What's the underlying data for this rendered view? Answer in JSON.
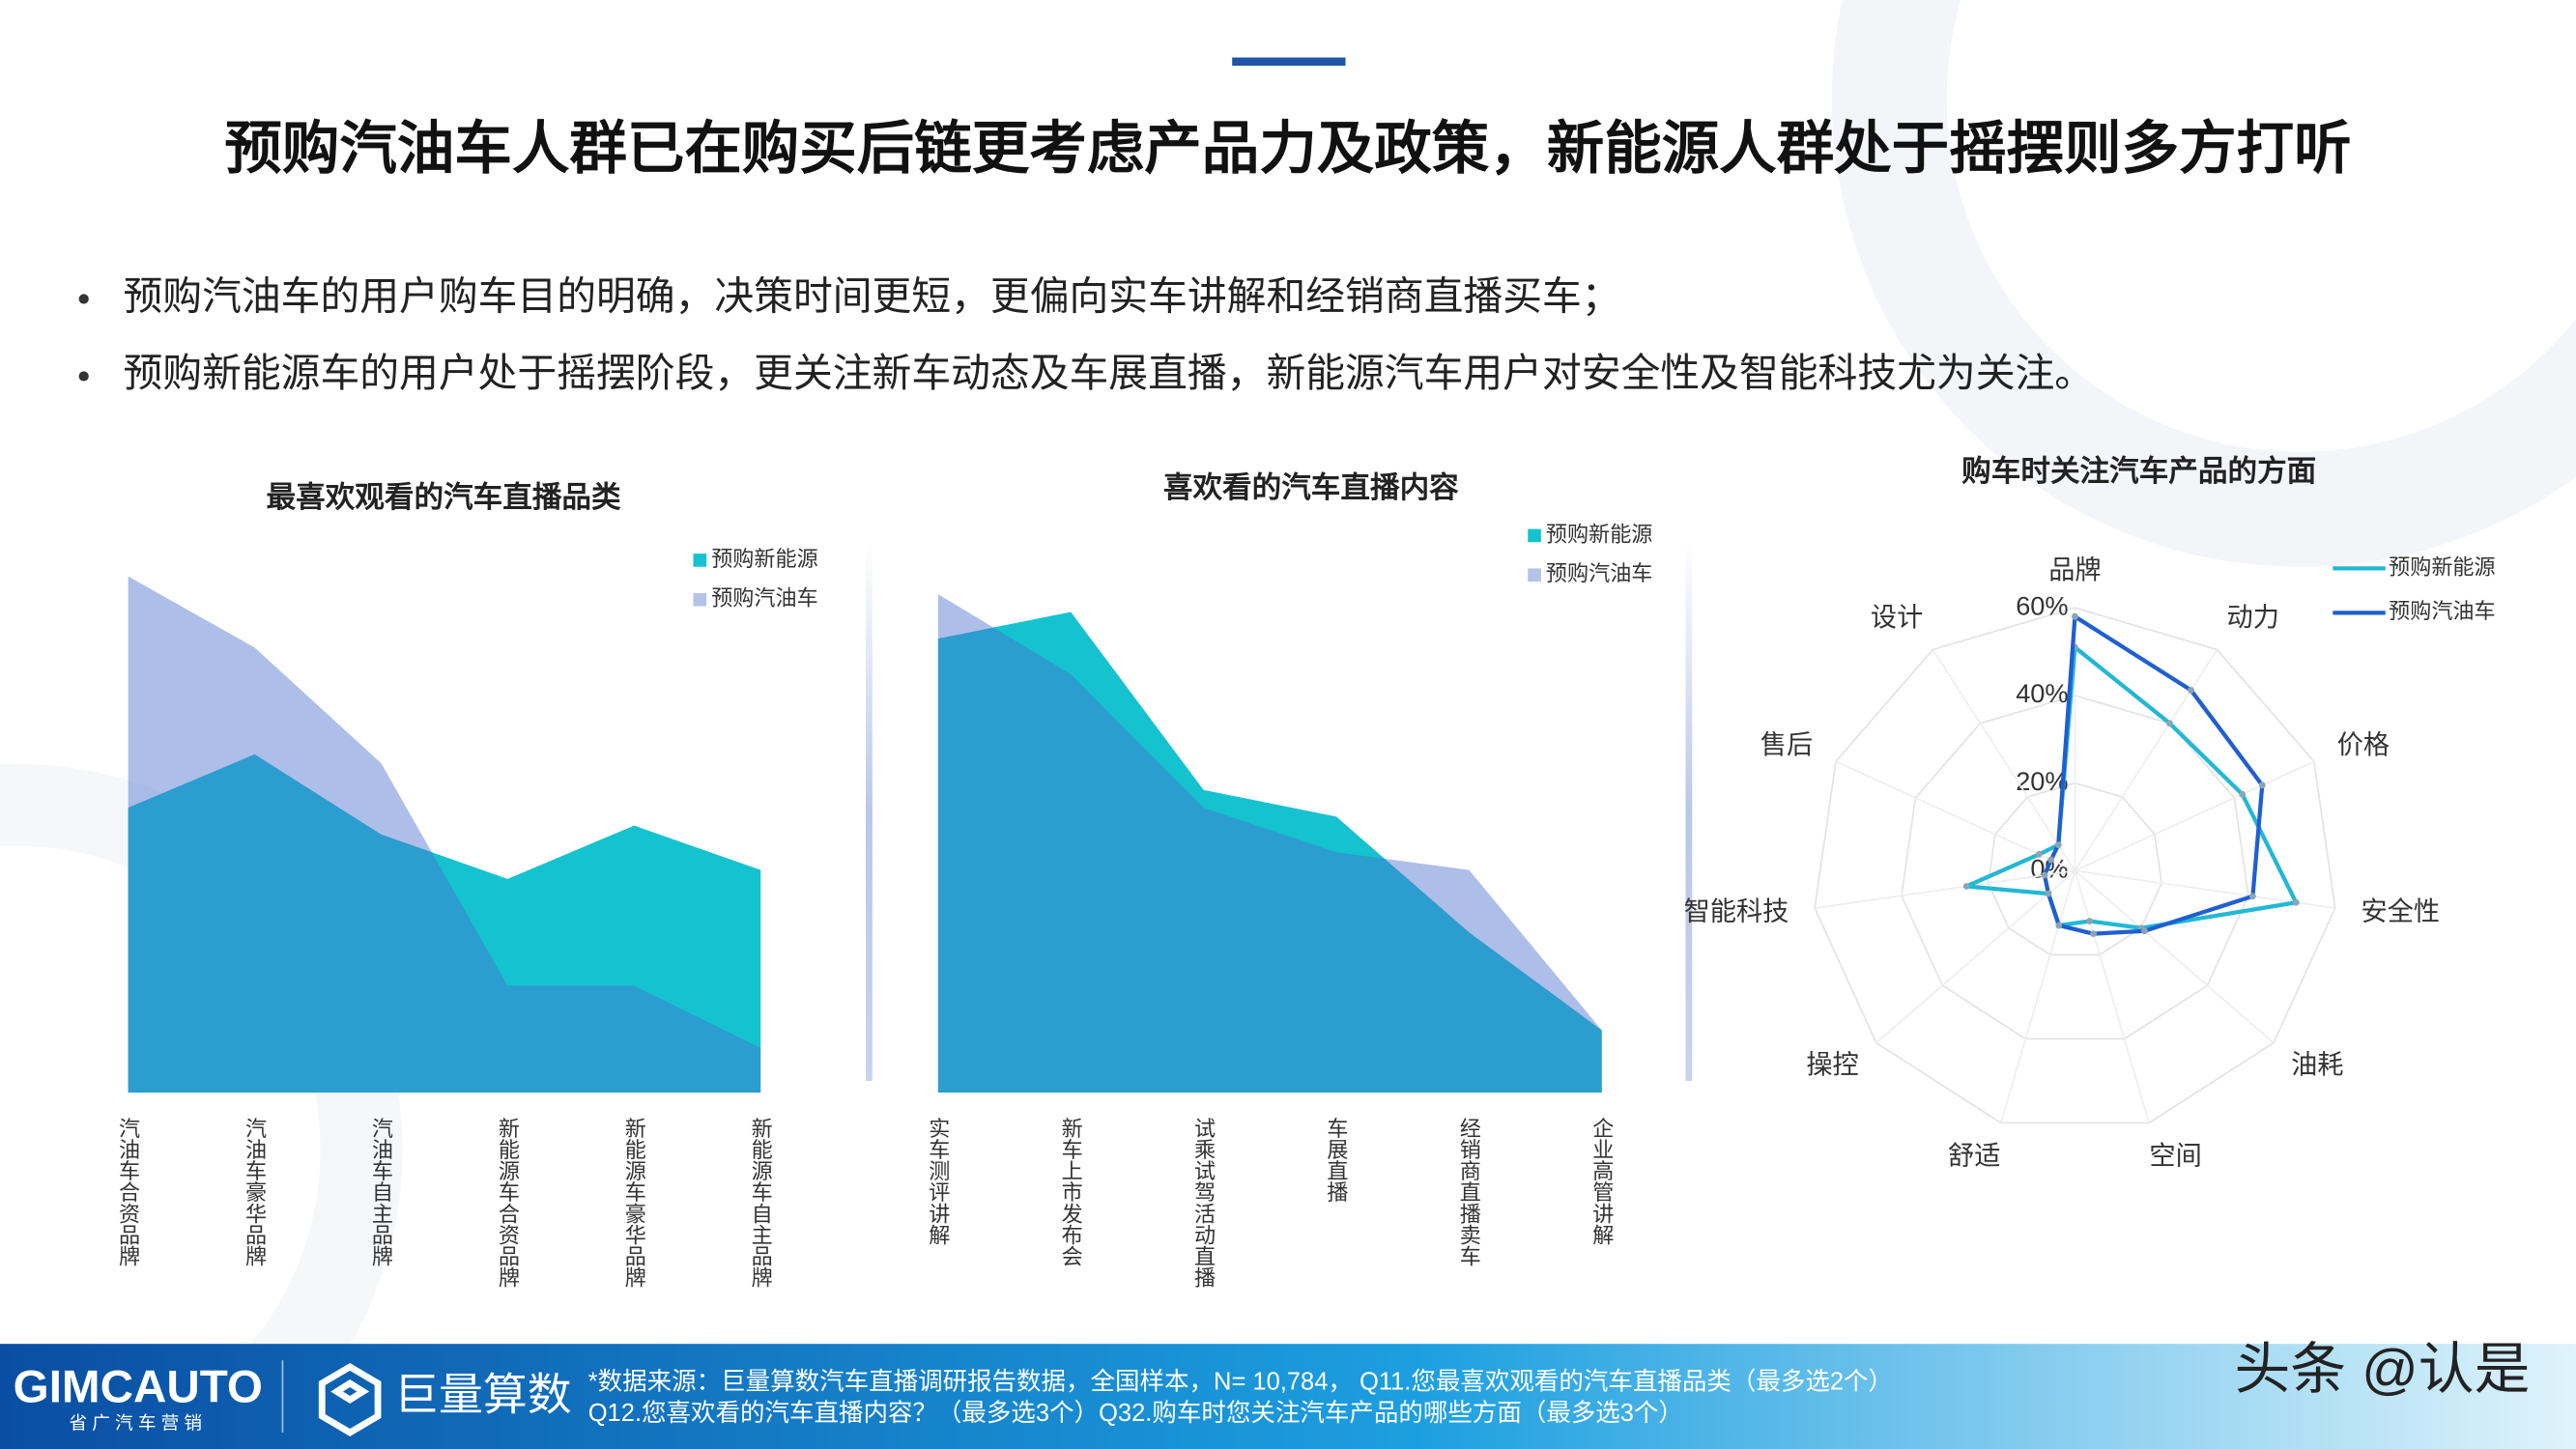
{
  "header": {
    "title": "预购汽油车人群已在购买后链更考虑产品力及政策，新能源人群处于摇摆则多方打听"
  },
  "bullets": [
    "预购汽油车的用户购车目的明确，决策时间更短，更偏向实车讲解和经销商直播买车；",
    "预购新能源车的用户处于摇摆阶段，更关注新车动态及车展直播，新能源汽车用户对安全性及智能科技尤为关注。"
  ],
  "chart_data": [
    {
      "type": "area",
      "title": "最喜欢观看的汽车直播品类",
      "categories": [
        "汽油车合资品牌",
        "汽油车豪华品牌",
        "汽油车自主品牌",
        "新能源车合资品牌",
        "新能源车豪华品牌",
        "新能源车自主品牌"
      ],
      "series": [
        {
          "name": "预购新能源",
          "color": "#14c3cf",
          "values": [
            32,
            38,
            29,
            24,
            30,
            25
          ]
        },
        {
          "name": "预购汽油车",
          "color": "#4a6fcf",
          "values": [
            58,
            50,
            37,
            12,
            12,
            5
          ]
        }
      ],
      "ylim": [
        0,
        60
      ],
      "legend": "top-right"
    },
    {
      "type": "area",
      "title": "喜欢看的汽车直播内容",
      "categories": [
        "实车测评讲解",
        "新车上市发布会",
        "试乘试驾活动直播",
        "车展直播",
        "经销商直播卖车",
        "企业高管讲解"
      ],
      "series": [
        {
          "name": "预购新能源",
          "color": "#14c3cf",
          "values": [
            51,
            54,
            34,
            31,
            18,
            7
          ]
        },
        {
          "name": "预购汽油车",
          "color": "#4a6fcf",
          "values": [
            56,
            47,
            32,
            27,
            25,
            7
          ]
        }
      ],
      "ylim": [
        0,
        60
      ],
      "legend": "top-right"
    },
    {
      "type": "radar",
      "title": "购车时关注汽车产品的方面",
      "categories": [
        "品牌",
        "动力",
        "价格",
        "安全性",
        "油耗",
        "空间",
        "舒适",
        "操控",
        "智能科技",
        "售后",
        "设计"
      ],
      "series": [
        {
          "name": "预购新能源",
          "color": "#22b8d4",
          "values": [
            51,
            40,
            42,
            51,
            20,
            12,
            13,
            8,
            25,
            9,
            7
          ]
        },
        {
          "name": "预购汽油车",
          "color": "#1f5fd0",
          "values": [
            58,
            49,
            47,
            41,
            21,
            15,
            13,
            8,
            7,
            6,
            7
          ]
        }
      ],
      "ylim": [
        0,
        60
      ],
      "yticks": [
        {
          "value": 0,
          "label": "0%"
        },
        {
          "value": 20,
          "label": "20%"
        },
        {
          "value": 40,
          "label": "40%"
        },
        {
          "value": 60,
          "label": "60%"
        }
      ],
      "grid": true,
      "legend": "top-right"
    }
  ],
  "footer": {
    "brand": "GIMCAUTO",
    "brand_sub": "省广汽车营销",
    "partner": "巨量算数",
    "source_lines": [
      "*数据来源：巨量算数汽车直播调研报告数据，全国样本，N= 10,784， Q11.您最喜欢观看的汽车直播品类（最多选2个）",
      "Q12.您喜欢看的汽车直播内容？（最多选3个）Q32.购车时您关注汽车产品的哪些方面（最多选3个）"
    ],
    "watermark": "头条 @认是"
  }
}
